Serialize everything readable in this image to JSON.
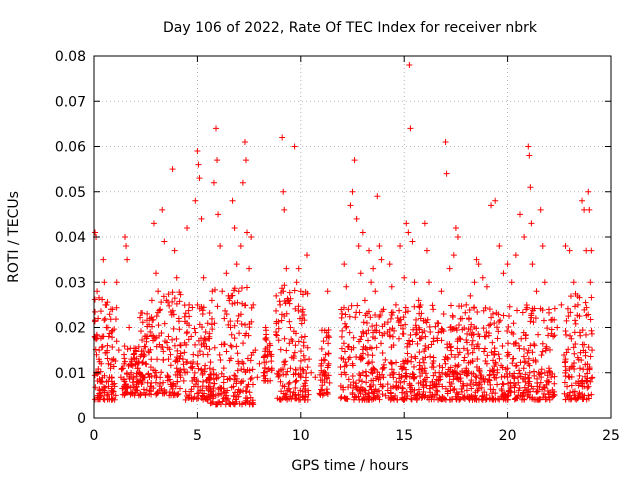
{
  "chart_data": {
    "type": "scatter",
    "title": "Day 106 of 2022, Rate Of TEC Index for receiver nbrk",
    "xlabel": "GPS time / hours",
    "ylabel": "ROTI / TECUs",
    "xlim": [
      0,
      25
    ],
    "ylim": [
      0,
      0.08
    ],
    "xticks": [
      0,
      5,
      10,
      15,
      20,
      25
    ],
    "xtick_labels": [
      "0",
      "5",
      "10",
      "15",
      "20",
      "25"
    ],
    "yticks": [
      0,
      0.01,
      0.02,
      0.03,
      0.04,
      0.05,
      0.06,
      0.07,
      0.08
    ],
    "ytick_labels": [
      "0",
      "0.01",
      "0.02",
      "0.03",
      "0.04",
      "0.05",
      "0.06",
      "0.07",
      "0.08"
    ],
    "grid": true,
    "marker": "+",
    "color": "#ff0000",
    "series": [
      {
        "name": "ROTI",
        "points": [
          [
            0.05,
            0.041
          ],
          [
            0.1,
            0.04
          ],
          [
            0.15,
            0.028
          ],
          [
            0.2,
            0.022
          ],
          [
            0.25,
            0.015
          ],
          [
            0.3,
            0.008
          ],
          [
            0.35,
            0.012
          ],
          [
            0.4,
            0.018
          ],
          [
            0.45,
            0.035
          ],
          [
            0.5,
            0.03
          ],
          [
            0.55,
            0.025
          ],
          [
            0.6,
            0.02
          ],
          [
            0.65,
            0.016
          ],
          [
            0.7,
            0.012
          ],
          [
            0.75,
            0.009
          ],
          [
            0.8,
            0.011
          ],
          [
            0.85,
            0.019
          ],
          [
            0.9,
            0.024
          ],
          [
            0.95,
            0.013
          ],
          [
            1.0,
            0.007
          ],
          [
            0.3,
            0.005
          ],
          [
            0.5,
            0.006
          ],
          [
            0.7,
            0.007
          ],
          [
            0.9,
            0.006
          ],
          [
            1.05,
            0.005
          ],
          [
            1.1,
            0.03
          ],
          [
            1.2,
            0.015
          ],
          [
            1.3,
            0.009
          ],
          [
            1.4,
            0.011
          ],
          [
            1.5,
            0.04
          ],
          [
            1.55,
            0.038
          ],
          [
            1.6,
            0.035
          ],
          [
            1.7,
            0.02
          ],
          [
            1.8,
            0.013
          ],
          [
            1.9,
            0.009
          ],
          [
            2.0,
            0.012
          ],
          [
            2.1,
            0.008
          ],
          [
            2.2,
            0.01
          ],
          [
            2.3,
            0.014
          ],
          [
            2.4,
            0.009
          ],
          [
            2.5,
            0.012
          ],
          [
            2.6,
            0.018
          ],
          [
            2.7,
            0.022
          ],
          [
            2.8,
            0.026
          ],
          [
            2.9,
            0.043
          ],
          [
            3.0,
            0.032
          ],
          [
            3.1,
            0.028
          ],
          [
            3.2,
            0.024
          ],
          [
            3.3,
            0.046
          ],
          [
            3.4,
            0.039
          ],
          [
            3.5,
            0.026
          ],
          [
            3.6,
            0.018
          ],
          [
            3.7,
            0.014
          ],
          [
            3.8,
            0.055
          ],
          [
            3.9,
            0.037
          ],
          [
            4.0,
            0.031
          ],
          [
            4.1,
            0.022
          ],
          [
            4.2,
            0.016
          ],
          [
            4.3,
            0.013
          ],
          [
            4.4,
            0.01
          ],
          [
            4.5,
            0.042
          ],
          [
            4.6,
            0.025
          ],
          [
            4.7,
            0.018
          ],
          [
            4.8,
            0.014
          ],
          [
            4.9,
            0.048
          ],
          [
            5.0,
            0.059
          ],
          [
            5.05,
            0.056
          ],
          [
            5.1,
            0.053
          ],
          [
            5.2,
            0.044
          ],
          [
            5.3,
            0.031
          ],
          [
            5.4,
            0.019
          ],
          [
            5.5,
            0.014
          ],
          [
            5.6,
            0.011
          ],
          [
            5.7,
            0.026
          ],
          [
            5.8,
            0.052
          ],
          [
            5.9,
            0.064
          ],
          [
            5.95,
            0.057
          ],
          [
            6.0,
            0.045
          ],
          [
            6.1,
            0.038
          ],
          [
            6.2,
            0.028
          ],
          [
            6.3,
            0.022
          ],
          [
            6.4,
            0.032
          ],
          [
            6.5,
            0.027
          ],
          [
            6.6,
            0.02
          ],
          [
            6.7,
            0.048
          ],
          [
            6.8,
            0.042
          ],
          [
            6.9,
            0.034
          ],
          [
            7.0,
            0.028
          ],
          [
            7.1,
            0.038
          ],
          [
            7.2,
            0.052
          ],
          [
            7.3,
            0.061
          ],
          [
            7.35,
            0.057
          ],
          [
            7.4,
            0.041
          ],
          [
            7.5,
            0.033
          ],
          [
            7.6,
            0.04
          ],
          [
            7.7,
            0.025
          ],
          [
            7.8,
            0.015
          ],
          [
            7.9,
            0.009
          ],
          [
            8.0,
            0.012
          ],
          [
            8.2,
            0.01
          ],
          [
            8.3,
            0.02
          ],
          [
            8.4,
            0.014
          ],
          [
            8.6,
            0.011
          ],
          [
            8.8,
            0.019
          ],
          [
            9.0,
            0.025
          ],
          [
            9.1,
            0.062
          ],
          [
            9.15,
            0.05
          ],
          [
            9.2,
            0.046
          ],
          [
            9.3,
            0.033
          ],
          [
            9.4,
            0.026
          ],
          [
            9.5,
            0.02
          ],
          [
            9.6,
            0.017
          ],
          [
            9.7,
            0.06
          ],
          [
            9.8,
            0.03
          ],
          [
            9.9,
            0.033
          ],
          [
            10.0,
            0.028
          ],
          [
            10.1,
            0.024
          ],
          [
            10.2,
            0.018
          ],
          [
            10.3,
            0.036
          ],
          [
            10.4,
            0.013
          ],
          [
            10.5,
            0.01
          ],
          [
            10.7,
            0.009
          ],
          [
            11.0,
            0.012
          ],
          [
            11.1,
            0.017
          ],
          [
            11.2,
            0.014
          ],
          [
            11.3,
            0.028
          ],
          [
            11.35,
            0.012
          ],
          [
            12.0,
            0.023
          ],
          [
            12.1,
            0.034
          ],
          [
            12.2,
            0.029
          ],
          [
            12.3,
            0.024
          ],
          [
            12.4,
            0.047
          ],
          [
            12.5,
            0.05
          ],
          [
            12.6,
            0.057
          ],
          [
            12.7,
            0.044
          ],
          [
            12.8,
            0.038
          ],
          [
            12.9,
            0.032
          ],
          [
            13.0,
            0.041
          ],
          [
            13.1,
            0.026
          ],
          [
            13.2,
            0.021
          ],
          [
            13.3,
            0.037
          ],
          [
            13.4,
            0.03
          ],
          [
            13.5,
            0.033
          ],
          [
            13.6,
            0.028
          ],
          [
            13.7,
            0.049
          ],
          [
            13.8,
            0.038
          ],
          [
            13.9,
            0.035
          ],
          [
            14.0,
            0.024
          ],
          [
            14.2,
            0.019
          ],
          [
            14.3,
            0.034
          ],
          [
            14.4,
            0.029
          ],
          [
            14.6,
            0.025
          ],
          [
            14.8,
            0.038
          ],
          [
            15.0,
            0.031
          ],
          [
            15.1,
            0.043
          ],
          [
            15.2,
            0.041
          ],
          [
            15.25,
            0.078
          ],
          [
            15.3,
            0.064
          ],
          [
            15.4,
            0.039
          ],
          [
            15.5,
            0.03
          ],
          [
            15.7,
            0.026
          ],
          [
            15.8,
            0.022
          ],
          [
            16.0,
            0.043
          ],
          [
            16.1,
            0.037
          ],
          [
            16.2,
            0.03
          ],
          [
            16.4,
            0.024
          ],
          [
            16.6,
            0.021
          ],
          [
            16.8,
            0.028
          ],
          [
            17.0,
            0.061
          ],
          [
            17.05,
            0.054
          ],
          [
            17.2,
            0.033
          ],
          [
            17.4,
            0.036
          ],
          [
            17.5,
            0.042
          ],
          [
            17.6,
            0.04
          ],
          [
            17.8,
            0.022
          ],
          [
            18.0,
            0.025
          ],
          [
            18.2,
            0.027
          ],
          [
            18.4,
            0.03
          ],
          [
            18.5,
            0.035
          ],
          [
            18.6,
            0.034
          ],
          [
            18.8,
            0.031
          ],
          [
            19.0,
            0.029
          ],
          [
            19.2,
            0.047
          ],
          [
            19.4,
            0.048
          ],
          [
            19.6,
            0.038
          ],
          [
            19.8,
            0.032
          ],
          [
            20.0,
            0.034
          ],
          [
            20.2,
            0.03
          ],
          [
            20.4,
            0.036
          ],
          [
            20.6,
            0.045
          ],
          [
            20.8,
            0.04
          ],
          [
            21.0,
            0.06
          ],
          [
            21.05,
            0.058
          ],
          [
            21.1,
            0.051
          ],
          [
            21.15,
            0.043
          ],
          [
            21.2,
            0.034
          ],
          [
            21.4,
            0.028
          ],
          [
            21.6,
            0.046
          ],
          [
            21.7,
            0.038
          ],
          [
            21.8,
            0.03
          ],
          [
            22.0,
            0.024
          ],
          [
            22.2,
            0.018
          ],
          [
            22.4,
            0.02
          ],
          [
            22.6,
            0.025
          ],
          [
            22.8,
            0.038
          ],
          [
            23.0,
            0.037
          ],
          [
            23.2,
            0.03
          ],
          [
            23.4,
            0.025
          ],
          [
            23.6,
            0.048
          ],
          [
            23.7,
            0.046
          ],
          [
            23.8,
            0.037
          ],
          [
            23.9,
            0.05
          ],
          [
            24.0,
            0.03
          ],
          [
            23.95,
            0.046
          ],
          [
            24.05,
            0.037
          ],
          [
            12.5,
            0.012
          ],
          [
            13.0,
            0.01
          ],
          [
            13.5,
            0.011
          ],
          [
            14.0,
            0.009
          ],
          [
            14.5,
            0.01
          ],
          [
            15.0,
            0.012
          ],
          [
            15.5,
            0.009
          ],
          [
            16.0,
            0.011
          ],
          [
            16.5,
            0.01
          ],
          [
            17.0,
            0.012
          ],
          [
            17.5,
            0.01
          ],
          [
            18.0,
            0.011
          ],
          [
            18.5,
            0.009
          ],
          [
            19.0,
            0.012
          ],
          [
            19.5,
            0.01
          ],
          [
            20.0,
            0.011
          ],
          [
            20.5,
            0.009
          ],
          [
            21.0,
            0.012
          ],
          [
            21.5,
            0.01
          ],
          [
            22.0,
            0.011
          ],
          [
            23.0,
            0.009
          ],
          [
            23.5,
            0.011
          ],
          [
            24.0,
            0.008
          ],
          [
            0.2,
            0.01
          ],
          [
            0.6,
            0.008
          ],
          [
            3.0,
            0.01
          ],
          [
            4.0,
            0.011
          ],
          [
            6.0,
            0.009
          ],
          [
            7.0,
            0.012
          ],
          [
            9.5,
            0.011
          ],
          [
            10.0,
            0.009
          ]
        ]
      }
    ],
    "dense_band": {
      "description": "bulk of observations",
      "segments": [
        {
          "x": [
            0.0,
            1.1
          ],
          "y_min": 0.004,
          "y_max": 0.027
        },
        {
          "x": [
            1.3,
            2.2
          ],
          "y_min": 0.005,
          "y_max": 0.016
        },
        {
          "x": [
            2.2,
            3.3
          ],
          "y_min": 0.005,
          "y_max": 0.026
        },
        {
          "x": [
            3.3,
            4.2
          ],
          "y_min": 0.005,
          "y_max": 0.028
        },
        {
          "x": [
            4.3,
            5.6
          ],
          "y_min": 0.004,
          "y_max": 0.025
        },
        {
          "x": [
            5.6,
            7.7
          ],
          "y_min": 0.003,
          "y_max": 0.03
        },
        {
          "x": [
            8.2,
            8.6
          ],
          "y_min": 0.008,
          "y_max": 0.02
        },
        {
          "x": [
            8.8,
            10.4
          ],
          "y_min": 0.004,
          "y_max": 0.03
        },
        {
          "x": [
            10.9,
            11.4
          ],
          "y_min": 0.005,
          "y_max": 0.02
        },
        {
          "x": [
            11.9,
            22.3
          ],
          "y_min": 0.004,
          "y_max": 0.025
        },
        {
          "x": [
            22.7,
            24.1
          ],
          "y_min": 0.004,
          "y_max": 0.028
        }
      ]
    }
  }
}
